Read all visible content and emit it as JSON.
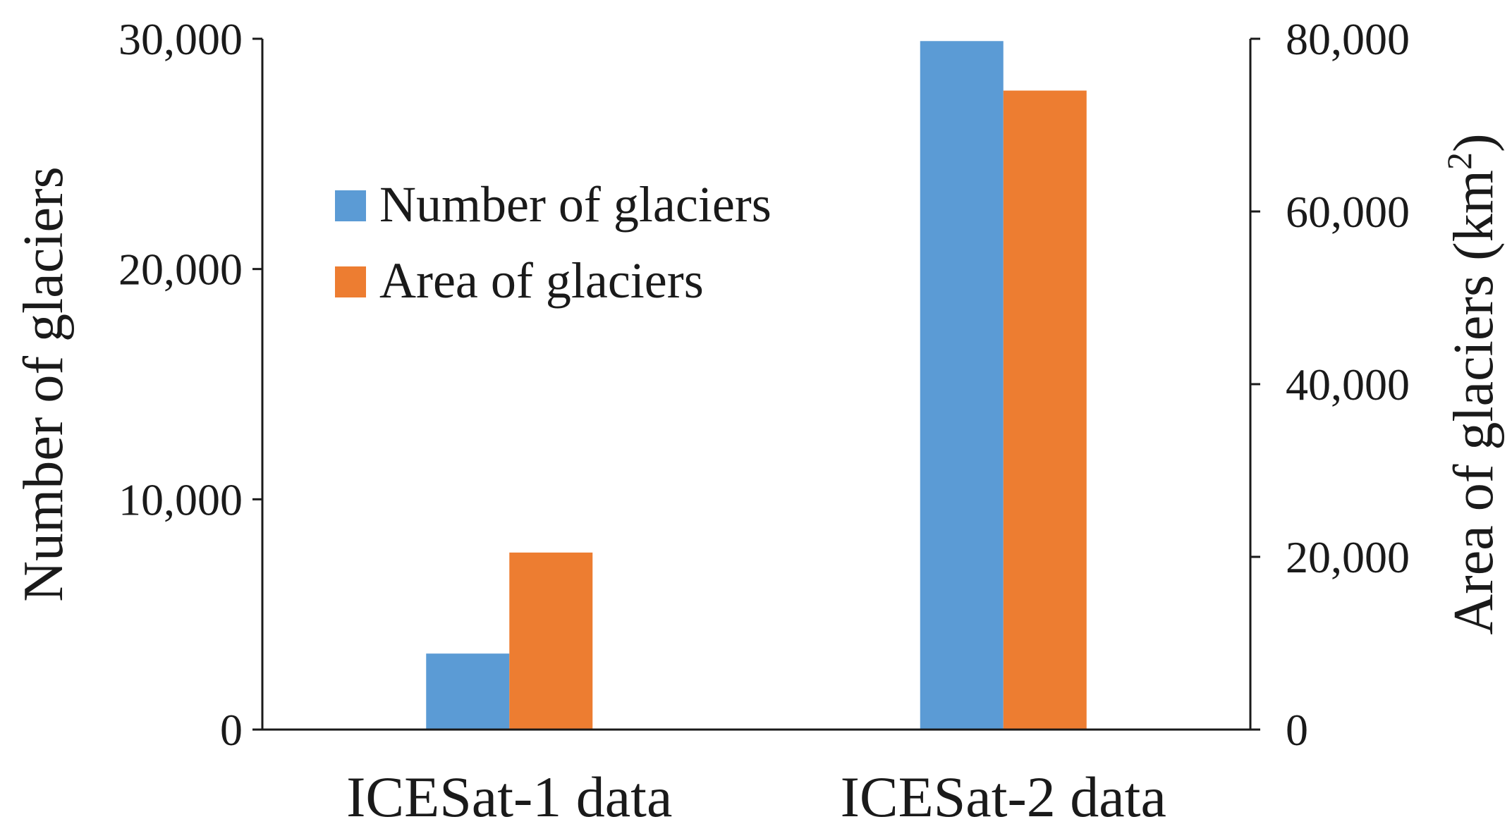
{
  "chart_data": {
    "type": "bar",
    "categories": [
      "ICESat-1 data",
      "ICESat-2 data"
    ],
    "series": [
      {
        "name": "Number of glaciers",
        "axis": "left",
        "color": "#5B9BD5",
        "values": [
          3300,
          29900
        ]
      },
      {
        "name": "Area of glaciers",
        "axis": "right",
        "color": "#ED7D31",
        "values": [
          20500,
          74000
        ]
      }
    ],
    "ylabel": "Number of glaciers",
    "ylabel_right": "Area of glaciers (km",
    "ylabel_right_sup": "2",
    "ylabel_right_close": ")",
    "ylim": [
      0,
      30000
    ],
    "ylim_right": [
      0,
      80000
    ],
    "yticks": [
      "0",
      "10,000",
      "20,000",
      "30,000"
    ],
    "yticks_right": [
      "0",
      "20,000",
      "40,000",
      "60,000",
      "80,000"
    ],
    "legend_position": "upper-left-center",
    "grid": false
  }
}
